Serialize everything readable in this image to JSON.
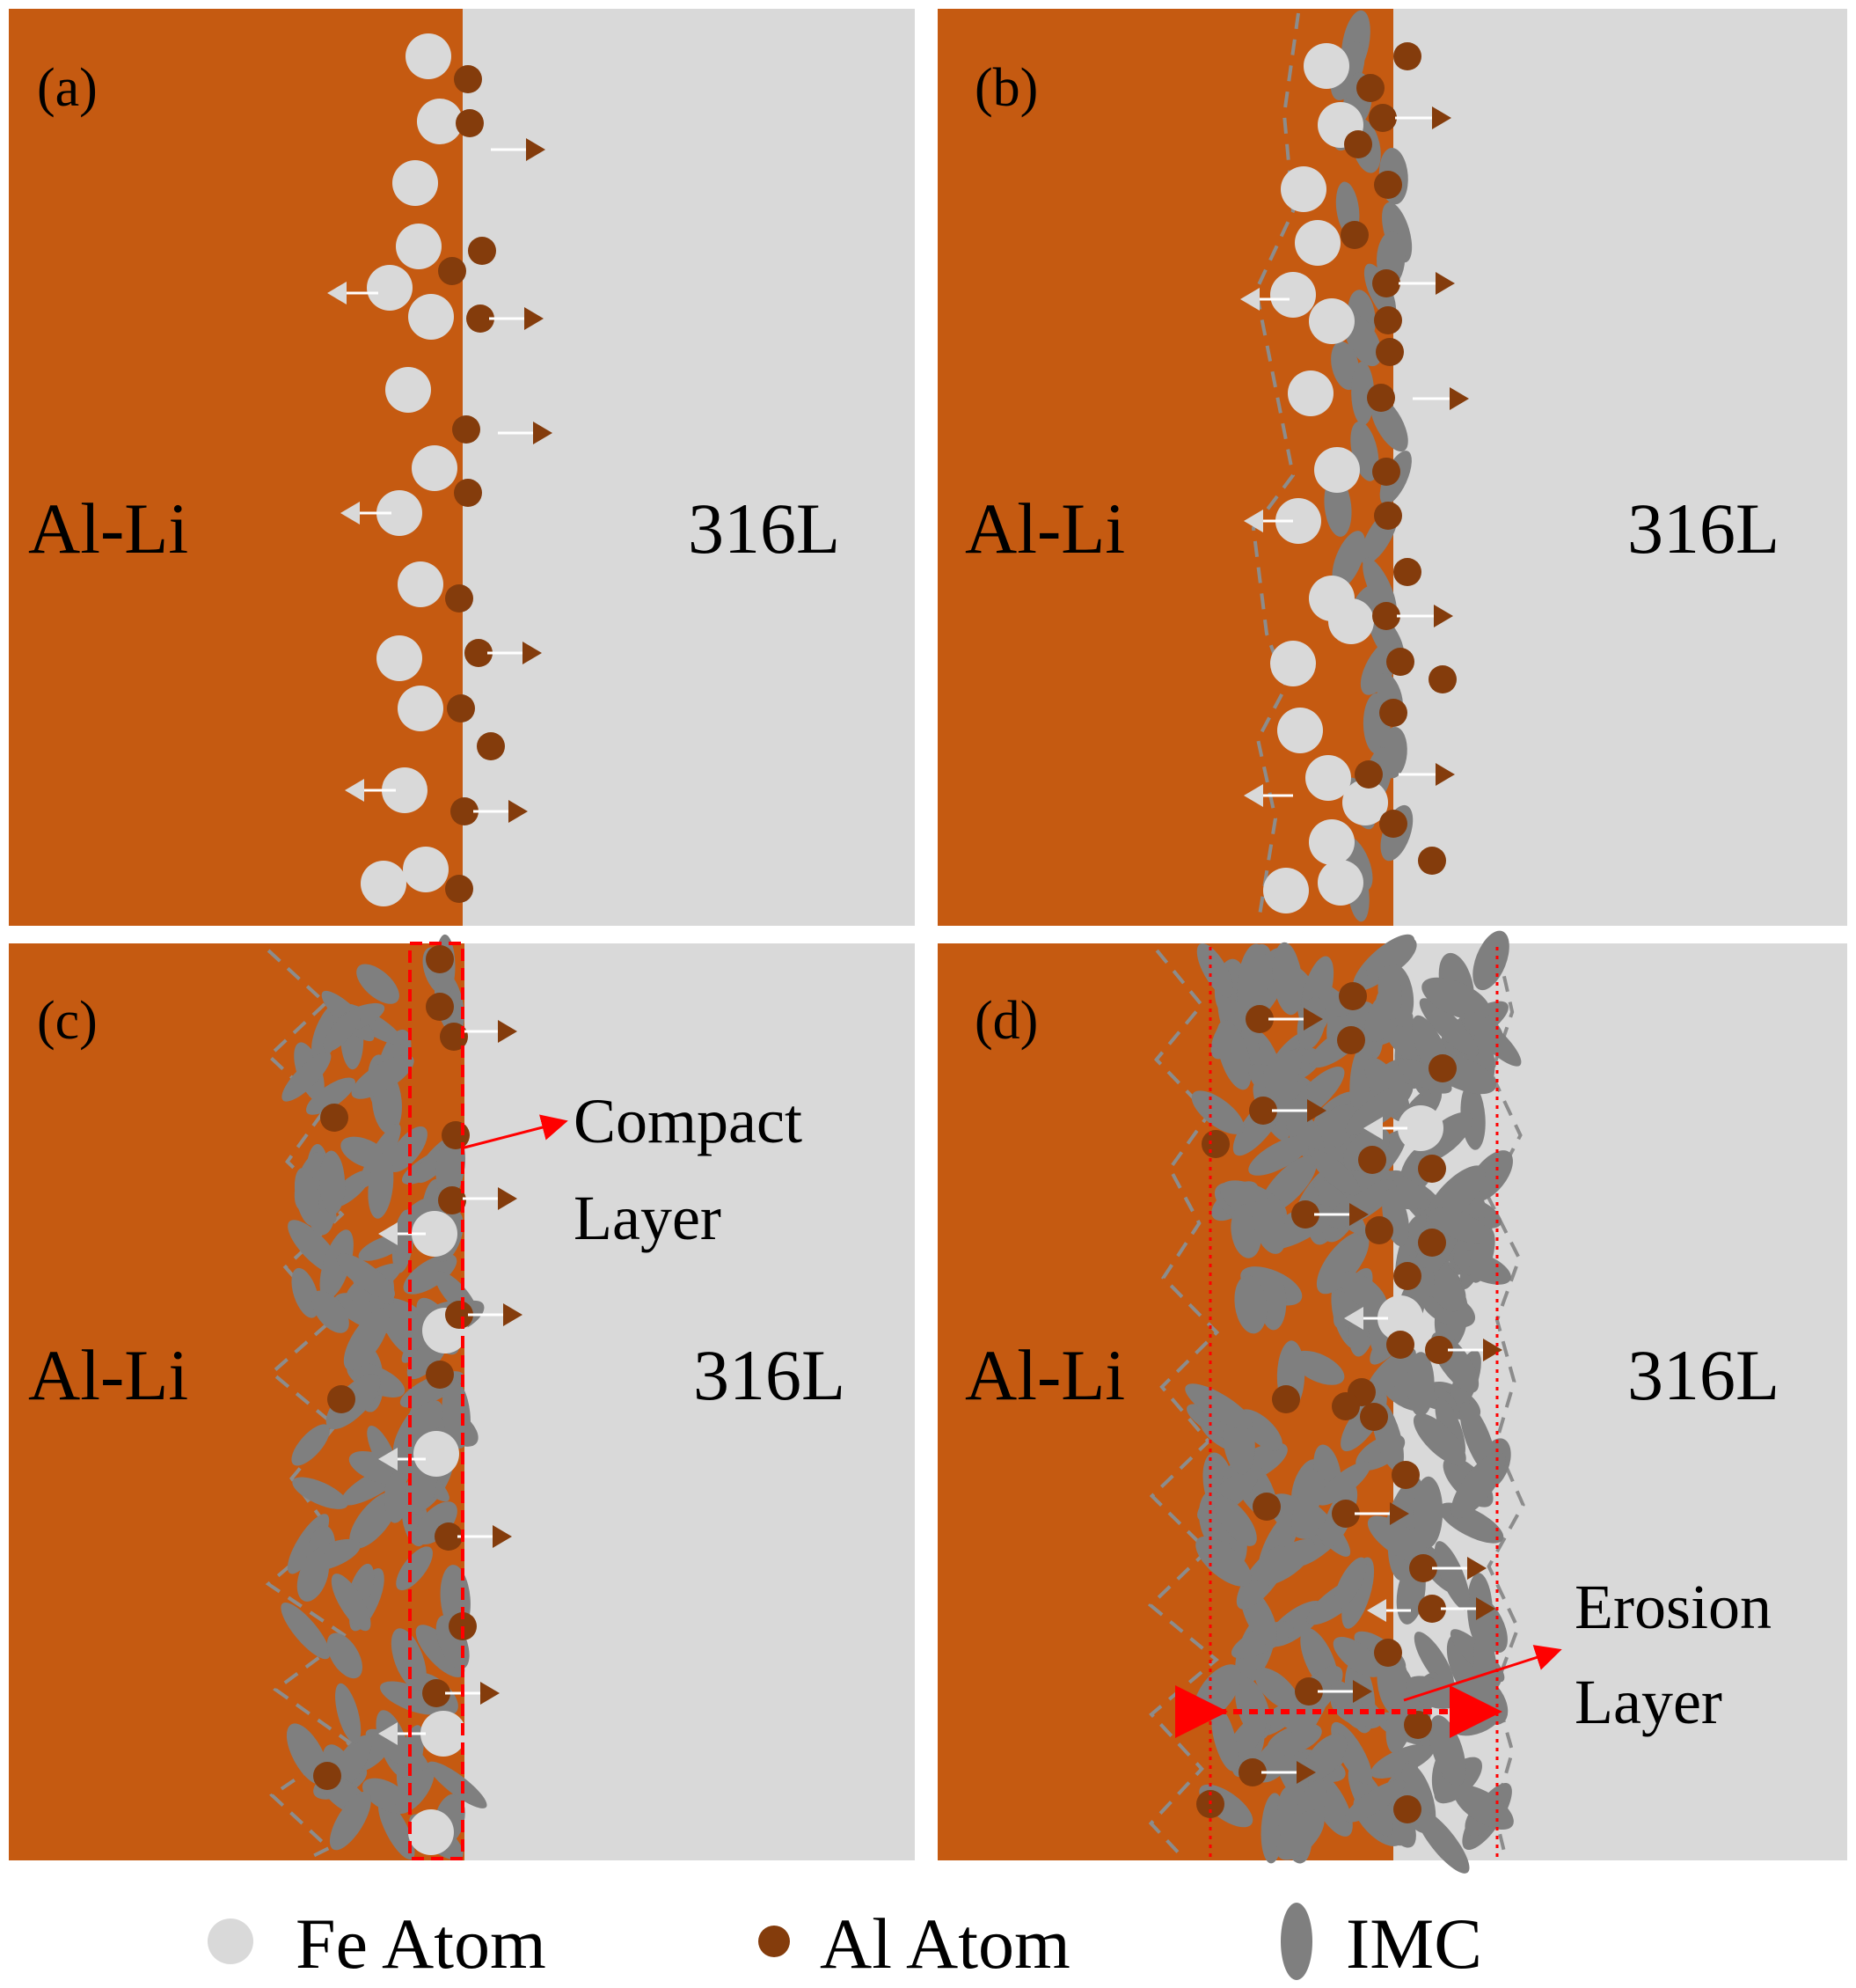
{
  "colors": {
    "al_li": "#C55A11",
    "steel": "#D9D9D9",
    "fe_atom": "#D9D9D9",
    "al_atom": "#843C0C",
    "imc": "#7F7F7F",
    "boundary_dash": "#8C8C8C",
    "annotation": "#FF0000"
  },
  "panels": [
    {
      "id": "a",
      "tag": "(a)",
      "left_label": "Al-Li",
      "right_label": "316L",
      "stage": "initial-contact"
    },
    {
      "id": "b",
      "tag": "(b)",
      "left_label": "Al-Li",
      "right_label": "316L",
      "stage": "imc-nucleation"
    },
    {
      "id": "c",
      "tag": "(c)",
      "left_label": "Al-Li",
      "right_label": "316L",
      "stage": "compact-layer",
      "annotation": {
        "line1": "Compact",
        "line2": "Layer"
      }
    },
    {
      "id": "d",
      "tag": "(d)",
      "left_label": "Al-Li",
      "right_label": "316L",
      "stage": "erosion-layer",
      "annotation": {
        "line1": "Erosion",
        "line2": "Layer"
      }
    }
  ],
  "legend": {
    "fe": "Fe Atom",
    "al": "Al Atom",
    "imc": "IMC"
  }
}
